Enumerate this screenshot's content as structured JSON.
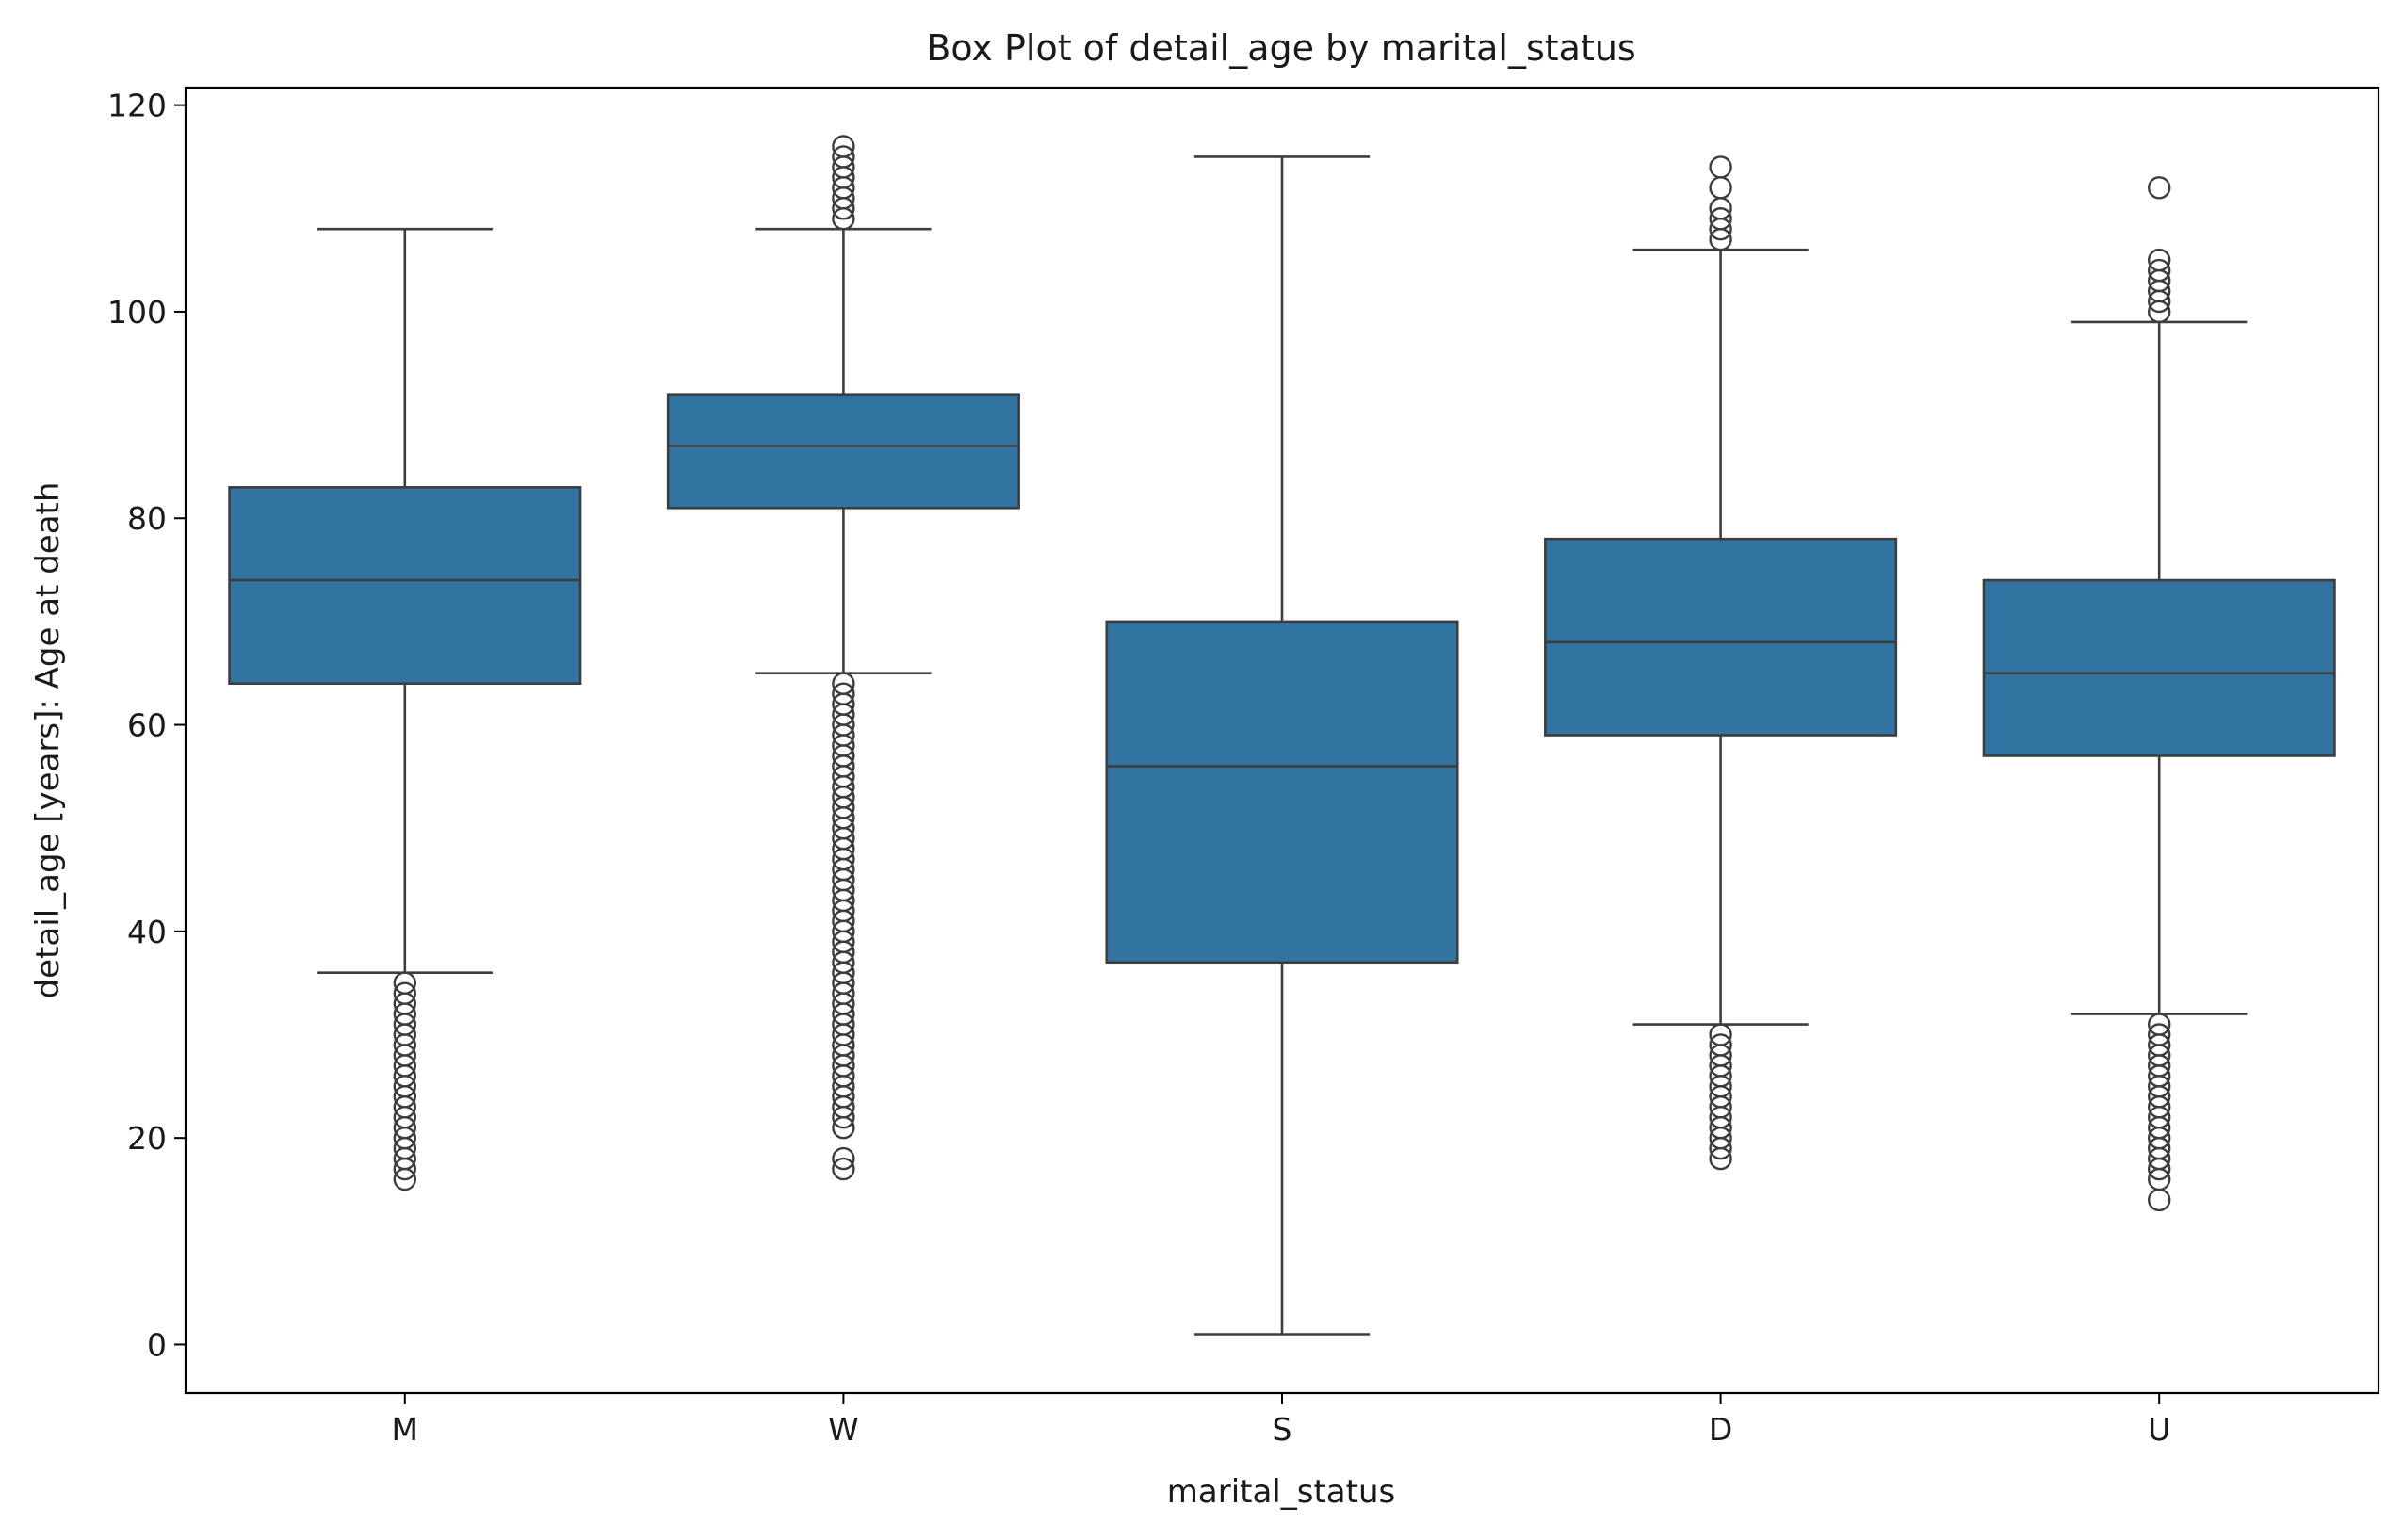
{
  "chart_data": {
    "type": "box",
    "title": "Box Plot of detail_age by marital_status",
    "xlabel": "marital_status",
    "ylabel": "detail_age [years]: Age at death",
    "ylim": [
      -4.7,
      121.7
    ],
    "yticks": [
      0,
      20,
      40,
      60,
      80,
      100,
      120
    ],
    "grid": false,
    "box_color": "#3274a1",
    "line_color": "#3d3d3d",
    "categories": [
      "M",
      "W",
      "S",
      "D",
      "U"
    ],
    "boxes": [
      {
        "category": "M",
        "whislo": 36,
        "q1": 64,
        "med": 74,
        "q3": 83,
        "whishi": 108,
        "fliers": [
          35,
          34,
          33,
          32,
          31,
          30,
          29,
          28,
          27,
          26,
          25,
          24,
          23,
          22,
          21,
          20,
          19,
          18,
          17,
          16
        ]
      },
      {
        "category": "W",
        "whislo": 65,
        "q1": 81,
        "med": 87,
        "q3": 92,
        "whishi": 108,
        "fliers": [
          116,
          115,
          114,
          113,
          112,
          111,
          110,
          109,
          64,
          63,
          62,
          61,
          60,
          59,
          58,
          57,
          56,
          55,
          54,
          53,
          52,
          51,
          50,
          49,
          48,
          47,
          46,
          45,
          44,
          43,
          42,
          41,
          40,
          39,
          38,
          37,
          36,
          35,
          34,
          33,
          32,
          31,
          30,
          29,
          28,
          27,
          26,
          25,
          24,
          23,
          22,
          21,
          18,
          17
        ]
      },
      {
        "category": "S",
        "whislo": 1,
        "q1": 37,
        "med": 56,
        "q3": 70,
        "whishi": 115,
        "fliers": []
      },
      {
        "category": "D",
        "whislo": 31,
        "q1": 59,
        "med": 68,
        "q3": 78,
        "whishi": 106,
        "fliers": [
          114,
          112,
          110,
          109,
          108,
          107,
          30,
          29,
          28,
          27,
          26,
          25,
          24,
          23,
          22,
          21,
          20,
          19,
          18
        ]
      },
      {
        "category": "U",
        "whislo": 32,
        "q1": 57,
        "med": 65,
        "q3": 74,
        "whishi": 99,
        "fliers": [
          112,
          105,
          104,
          103,
          102,
          101,
          100,
          31,
          30,
          29,
          28,
          27,
          26,
          25,
          24,
          23,
          22,
          21,
          20,
          19,
          18,
          17,
          16,
          14
        ]
      }
    ]
  }
}
